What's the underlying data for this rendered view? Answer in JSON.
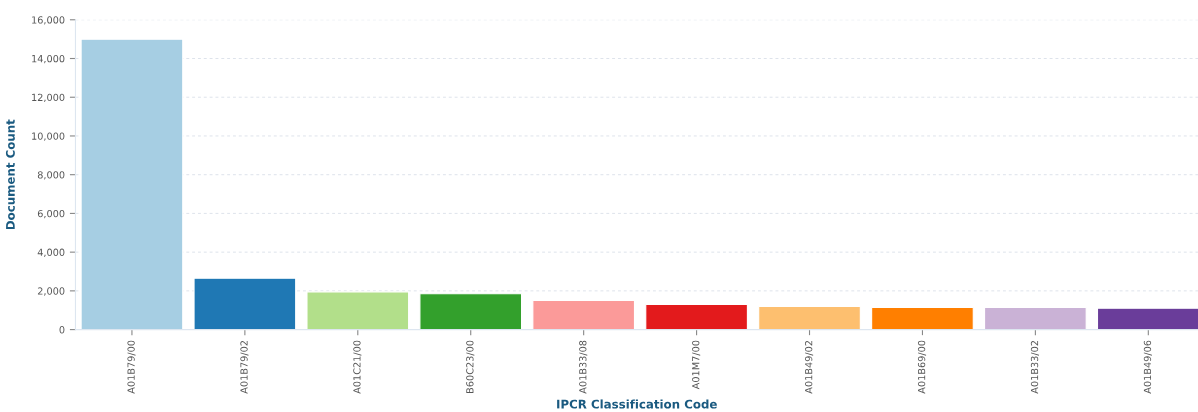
{
  "chart_data": {
    "type": "bar",
    "xlabel": "IPCR Classification Code",
    "ylabel": "Document Count",
    "categories": [
      "A01B79/00",
      "A01B79/02",
      "A01C21/00",
      "B60C23/00",
      "A01B33/08",
      "A01M7/00",
      "A01B49/02",
      "A01B69/00",
      "A01B33/02",
      "A01B49/06"
    ],
    "values": [
      15000,
      2650,
      1950,
      1850,
      1500,
      1300,
      1200,
      1150,
      1150,
      1100
    ],
    "colors": [
      "#a6cee3",
      "#1f78b4",
      "#b2df8a",
      "#33a02c",
      "#fb9a99",
      "#e31a1c",
      "#fdbf6f",
      "#ff7f00",
      "#cab2d6",
      "#6a3d9a"
    ],
    "ylim": [
      0,
      16000
    ],
    "yticks": [
      {
        "value": 0,
        "label": "0"
      },
      {
        "value": 2000,
        "label": "2,000"
      },
      {
        "value": 4000,
        "label": "4,000"
      },
      {
        "value": 6000,
        "label": "6,000"
      },
      {
        "value": 8000,
        "label": "8,000"
      },
      {
        "value": 10000,
        "label": "10,000"
      },
      {
        "value": 12000,
        "label": "12,000"
      },
      {
        "value": 14000,
        "label": "14,000"
      },
      {
        "value": 16000,
        "label": "16,000"
      }
    ],
    "grid": "y"
  }
}
